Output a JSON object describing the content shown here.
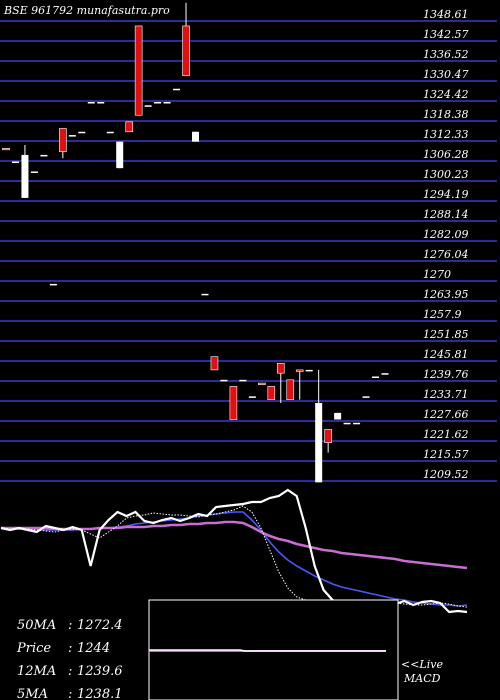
{
  "header": {
    "title": "BSE 961792  munafasutra.pro"
  },
  "chart_data": {
    "type": "candlestick",
    "price_axis": {
      "ticks": [
        "1348.61",
        "1342.57",
        "1336.52",
        "1330.47",
        "1324.42",
        "1318.38",
        "1312.33",
        "1306.28",
        "1300.23",
        "1294.19",
        "1288.14",
        "1282.09",
        "1276.04",
        "1270",
        "1263.95",
        "1257.9",
        "1251.85",
        "1245.81",
        "1239.76",
        "1233.71",
        "1227.66",
        "1221.62",
        "1215.57",
        "1209.52"
      ]
    },
    "candles": [
      {
        "open": 1308,
        "close": 1308,
        "high": 1308,
        "low": 1308,
        "color": "red"
      },
      {
        "open": 1304,
        "close": 1304,
        "high": 1304,
        "low": 1304,
        "color": "white"
      },
      {
        "open": 1306,
        "close": 1293,
        "high": 1309,
        "low": 1293,
        "color": "white"
      },
      {
        "open": 1301,
        "close": 1301,
        "high": 1301,
        "low": 1301,
        "color": "white"
      },
      {
        "open": 1306,
        "close": 1306,
        "high": 1306,
        "low": 1306,
        "color": "white"
      },
      {
        "open": 1267,
        "close": 1267,
        "high": 1267,
        "low": 1267,
        "color": "white"
      },
      {
        "open": 1307,
        "close": 1314,
        "high": 1314,
        "low": 1305,
        "color": "red"
      },
      {
        "open": 1312,
        "close": 1312,
        "high": 1312,
        "low": 1312,
        "color": "white"
      },
      {
        "open": 1313,
        "close": 1313,
        "high": 1313,
        "low": 1313,
        "color": "white"
      },
      {
        "open": 1322,
        "close": 1322,
        "high": 1322,
        "low": 1322,
        "color": "white"
      },
      {
        "open": 1322,
        "close": 1322,
        "high": 1322,
        "low": 1322,
        "color": "white"
      },
      {
        "open": 1313,
        "close": 1313,
        "high": 1313,
        "low": 1313,
        "color": "white"
      },
      {
        "open": 1310,
        "close": 1302,
        "high": 1310,
        "low": 1302,
        "color": "white"
      },
      {
        "open": 1313,
        "close": 1316,
        "high": 1316,
        "low": 1313,
        "color": "red"
      },
      {
        "open": 1318,
        "close": 1345,
        "high": 1345,
        "low": 1318,
        "color": "red"
      },
      {
        "open": 1321,
        "close": 1321,
        "high": 1321,
        "low": 1321,
        "color": "white"
      },
      {
        "open": 1322,
        "close": 1322,
        "high": 1322,
        "low": 1322,
        "color": "white"
      },
      {
        "open": 1322,
        "close": 1322,
        "high": 1322,
        "low": 1322,
        "color": "white"
      },
      {
        "open": 1326,
        "close": 1326,
        "high": 1326,
        "low": 1326,
        "color": "white"
      },
      {
        "open": 1330,
        "close": 1345,
        "high": 1352,
        "low": 1330,
        "color": "red"
      },
      {
        "open": 1313,
        "close": 1310,
        "high": 1313,
        "low": 1310,
        "color": "white"
      },
      {
        "open": 1264,
        "close": 1264,
        "high": 1264,
        "low": 1264,
        "color": "white"
      },
      {
        "open": 1241,
        "close": 1245,
        "high": 1245,
        "low": 1241,
        "color": "red"
      },
      {
        "open": 1238,
        "close": 1238,
        "high": 1238,
        "low": 1238,
        "color": "white"
      },
      {
        "open": 1226,
        "close": 1236,
        "high": 1236,
        "low": 1226,
        "color": "red"
      },
      {
        "open": 1238,
        "close": 1238,
        "high": 1238,
        "low": 1238,
        "color": "white"
      },
      {
        "open": 1233,
        "close": 1233,
        "high": 1233,
        "low": 1233,
        "color": "white"
      },
      {
        "open": 1237,
        "close": 1237,
        "high": 1237,
        "low": 1237,
        "color": "red"
      },
      {
        "open": 1232,
        "close": 1236,
        "high": 1236,
        "low": 1232,
        "color": "red"
      },
      {
        "open": 1240,
        "close": 1243,
        "high": 1243,
        "low": 1231,
        "color": "red"
      },
      {
        "open": 1232,
        "close": 1238,
        "high": 1238,
        "low": 1232,
        "color": "red"
      },
      {
        "open": 1241,
        "close": 1241,
        "high": 1241,
        "low": 1232,
        "color": "red"
      },
      {
        "open": 1241,
        "close": 1241,
        "high": 1241,
        "low": 1241,
        "color": "white"
      },
      {
        "open": 1231,
        "close": 1207,
        "high": 1241,
        "low": 1207,
        "color": "white"
      },
      {
        "open": 1219,
        "close": 1223,
        "high": 1223,
        "low": 1216,
        "color": "red"
      },
      {
        "open": 1228,
        "close": 1226,
        "high": 1228,
        "low": 1226,
        "color": "white"
      },
      {
        "open": 1225,
        "close": 1225,
        "high": 1225,
        "low": 1225,
        "color": "white"
      },
      {
        "open": 1225,
        "close": 1225,
        "high": 1225,
        "low": 1225,
        "color": "white"
      },
      {
        "open": 1233,
        "close": 1233,
        "high": 1233,
        "low": 1233,
        "color": "white"
      },
      {
        "open": 1239,
        "close": 1239,
        "high": 1239,
        "low": 1239,
        "color": "white"
      },
      {
        "open": 1240,
        "close": 1240,
        "high": 1240,
        "low": 1240,
        "color": "white"
      }
    ],
    "indicator_panel": {
      "price_line": [
        528,
        530,
        528,
        530,
        532,
        526,
        528,
        530,
        527,
        530,
        566,
        530,
        520,
        512,
        516,
        512,
        521,
        523,
        520,
        518,
        521,
        518,
        514,
        516,
        507,
        506,
        505,
        504,
        502,
        502,
        498,
        496,
        490,
        496,
        528,
        566,
        590,
        600,
        603,
        604,
        604,
        603,
        603,
        602,
        604,
        601,
        605,
        602,
        601,
        603,
        612,
        611,
        612
      ],
      "series": [
        {
          "name": "12MA",
          "color": "#4b56ff",
          "values": [
            528,
            529,
            529,
            529,
            529,
            530,
            530,
            530,
            530,
            529,
            529,
            528,
            528,
            527,
            526,
            524,
            523,
            522,
            521,
            520,
            519,
            518,
            516,
            515,
            514,
            513,
            512,
            512,
            520,
            530,
            542,
            552,
            560,
            566,
            571,
            576,
            580,
            584,
            587,
            589,
            591,
            593,
            595,
            597,
            599,
            600,
            602,
            603,
            604,
            605,
            605,
            606,
            605
          ]
        },
        {
          "name": "50MA",
          "color": "#c96dd2",
          "values": [
            528,
            528,
            528,
            528,
            528,
            528,
            529,
            529,
            529,
            529,
            529,
            528,
            528,
            528,
            527,
            527,
            527,
            526,
            526,
            525,
            525,
            524,
            524,
            523,
            523,
            522,
            522,
            523,
            527,
            532,
            536,
            539,
            541,
            544,
            546,
            548,
            550,
            551,
            553,
            554,
            555,
            556,
            557,
            558,
            559,
            561,
            562,
            563,
            564,
            565,
            566,
            567,
            568
          ]
        },
        {
          "name": "5MA",
          "color": "#ffffff",
          "dashed": true,
          "values": [
            528,
            529,
            529,
            529,
            530,
            531,
            532,
            530,
            529,
            530,
            534,
            538,
            532,
            526,
            518,
            516,
            515,
            513,
            514,
            515,
            515,
            516,
            517,
            515,
            514,
            512,
            510,
            506,
            512,
            528,
            550,
            572,
            588,
            597,
            600,
            602,
            603,
            603,
            603,
            602,
            602,
            602,
            602,
            602,
            603,
            604,
            605,
            605,
            604,
            603,
            604,
            606,
            607
          ]
        }
      ]
    },
    "macd_panel": {
      "line": [
        650,
        650,
        650,
        650,
        650,
        650,
        650,
        650,
        650,
        650,
        650,
        650,
        650,
        650,
        650,
        650,
        650,
        650,
        650,
        650,
        650,
        651,
        651,
        651,
        651,
        651,
        651,
        651,
        651,
        651,
        651,
        651,
        651,
        651,
        651,
        651,
        651,
        651,
        651,
        651,
        651,
        651,
        651,
        651,
        651,
        651,
        651,
        651,
        651,
        651,
        651,
        651,
        651
      ],
      "signal": [
        651,
        651,
        651,
        651,
        651,
        651,
        651,
        651,
        651,
        651,
        651,
        651,
        651,
        651,
        651,
        651,
        651,
        651,
        651,
        651,
        651,
        651,
        651,
        651,
        651,
        651,
        651,
        651,
        651,
        651,
        651,
        651,
        651,
        651,
        651,
        651,
        651,
        651,
        651,
        651,
        651,
        651,
        651,
        651,
        651,
        651,
        651,
        651,
        651,
        651,
        651,
        651,
        651
      ]
    },
    "readouts": [
      {
        "label": "50MA",
        "value": "1272.4"
      },
      {
        "label": "Price",
        "value": "1244"
      },
      {
        "label": "12MA",
        "value": "1239.6"
      },
      {
        "label": "5MA",
        "value": "1238.1"
      }
    ],
    "live_label": "<<Live",
    "macd_label": "MACD"
  }
}
